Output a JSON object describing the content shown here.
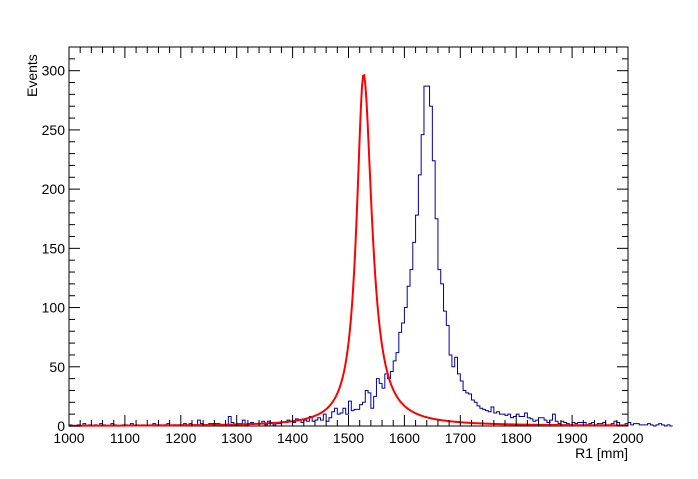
{
  "chart_data": {
    "type": "histogram",
    "title": "",
    "xlabel": "R1 [mm]",
    "ylabel": "Events",
    "xlim": [
      1000,
      2000
    ],
    "ylim": [
      0,
      320
    ],
    "x_ticks": [
      1000,
      1100,
      1200,
      1300,
      1400,
      1500,
      1600,
      1700,
      1800,
      1900,
      2000
    ],
    "y_ticks": [
      0,
      50,
      100,
      150,
      200,
      250,
      300
    ],
    "grid": false,
    "legend": "none",
    "bin_width": 5,
    "bins_start": 1000,
    "series": [
      {
        "kind": "histogram",
        "color": "#000099",
        "bin_counts": [
          1,
          0,
          0,
          1,
          0,
          2,
          0,
          1,
          0,
          1,
          0,
          2,
          1,
          0,
          0,
          2,
          1,
          0,
          0,
          1,
          1,
          0,
          2,
          0,
          1,
          0,
          1,
          0,
          0,
          1,
          2,
          1,
          1,
          0,
          1,
          2,
          0,
          1,
          0,
          1,
          1,
          2,
          1,
          2,
          0,
          1,
          5,
          2,
          1,
          1,
          2,
          2,
          2,
          2,
          1,
          1,
          1,
          8,
          3,
          1,
          2,
          2,
          5,
          1,
          2,
          3,
          2,
          2,
          2,
          4,
          1,
          4,
          3,
          1,
          2,
          2,
          3,
          3,
          5,
          4,
          3,
          6,
          5,
          3,
          5,
          4,
          8,
          4,
          5,
          7,
          5,
          10,
          4,
          7,
          12,
          15,
          10,
          11,
          15,
          10,
          21,
          13,
          14,
          14,
          18,
          20,
          30,
          28,
          15,
          25,
          40,
          36,
          32,
          44,
          40,
          46,
          55,
          62,
          79,
          87,
          100,
          118,
          132,
          155,
          178,
          212,
          246,
          287,
          287,
          270,
          224,
          175,
          132,
          120,
          97,
          85,
          60,
          50,
          58,
          44,
          38,
          30,
          28,
          27,
          22,
          20,
          17,
          15,
          14,
          13,
          12,
          16,
          11,
          12,
          10,
          10,
          9,
          10,
          7,
          8,
          10,
          8,
          8,
          11,
          7,
          6,
          4,
          5,
          7,
          7,
          5,
          3,
          5,
          10,
          4,
          2,
          4,
          3,
          2,
          1,
          3,
          2,
          3,
          3,
          3,
          1,
          2,
          3,
          1,
          2,
          2,
          3,
          1,
          1,
          2,
          4,
          3,
          1,
          1,
          2,
          3,
          1,
          2,
          2,
          1,
          1,
          1,
          2,
          1,
          0,
          1,
          2,
          1,
          0,
          1,
          0
        ]
      },
      {
        "kind": "fit",
        "color": "#ff0000",
        "peak": 297,
        "mean": 1527,
        "hwhm_low": 15,
        "hwhm_high": 18
      }
    ]
  }
}
